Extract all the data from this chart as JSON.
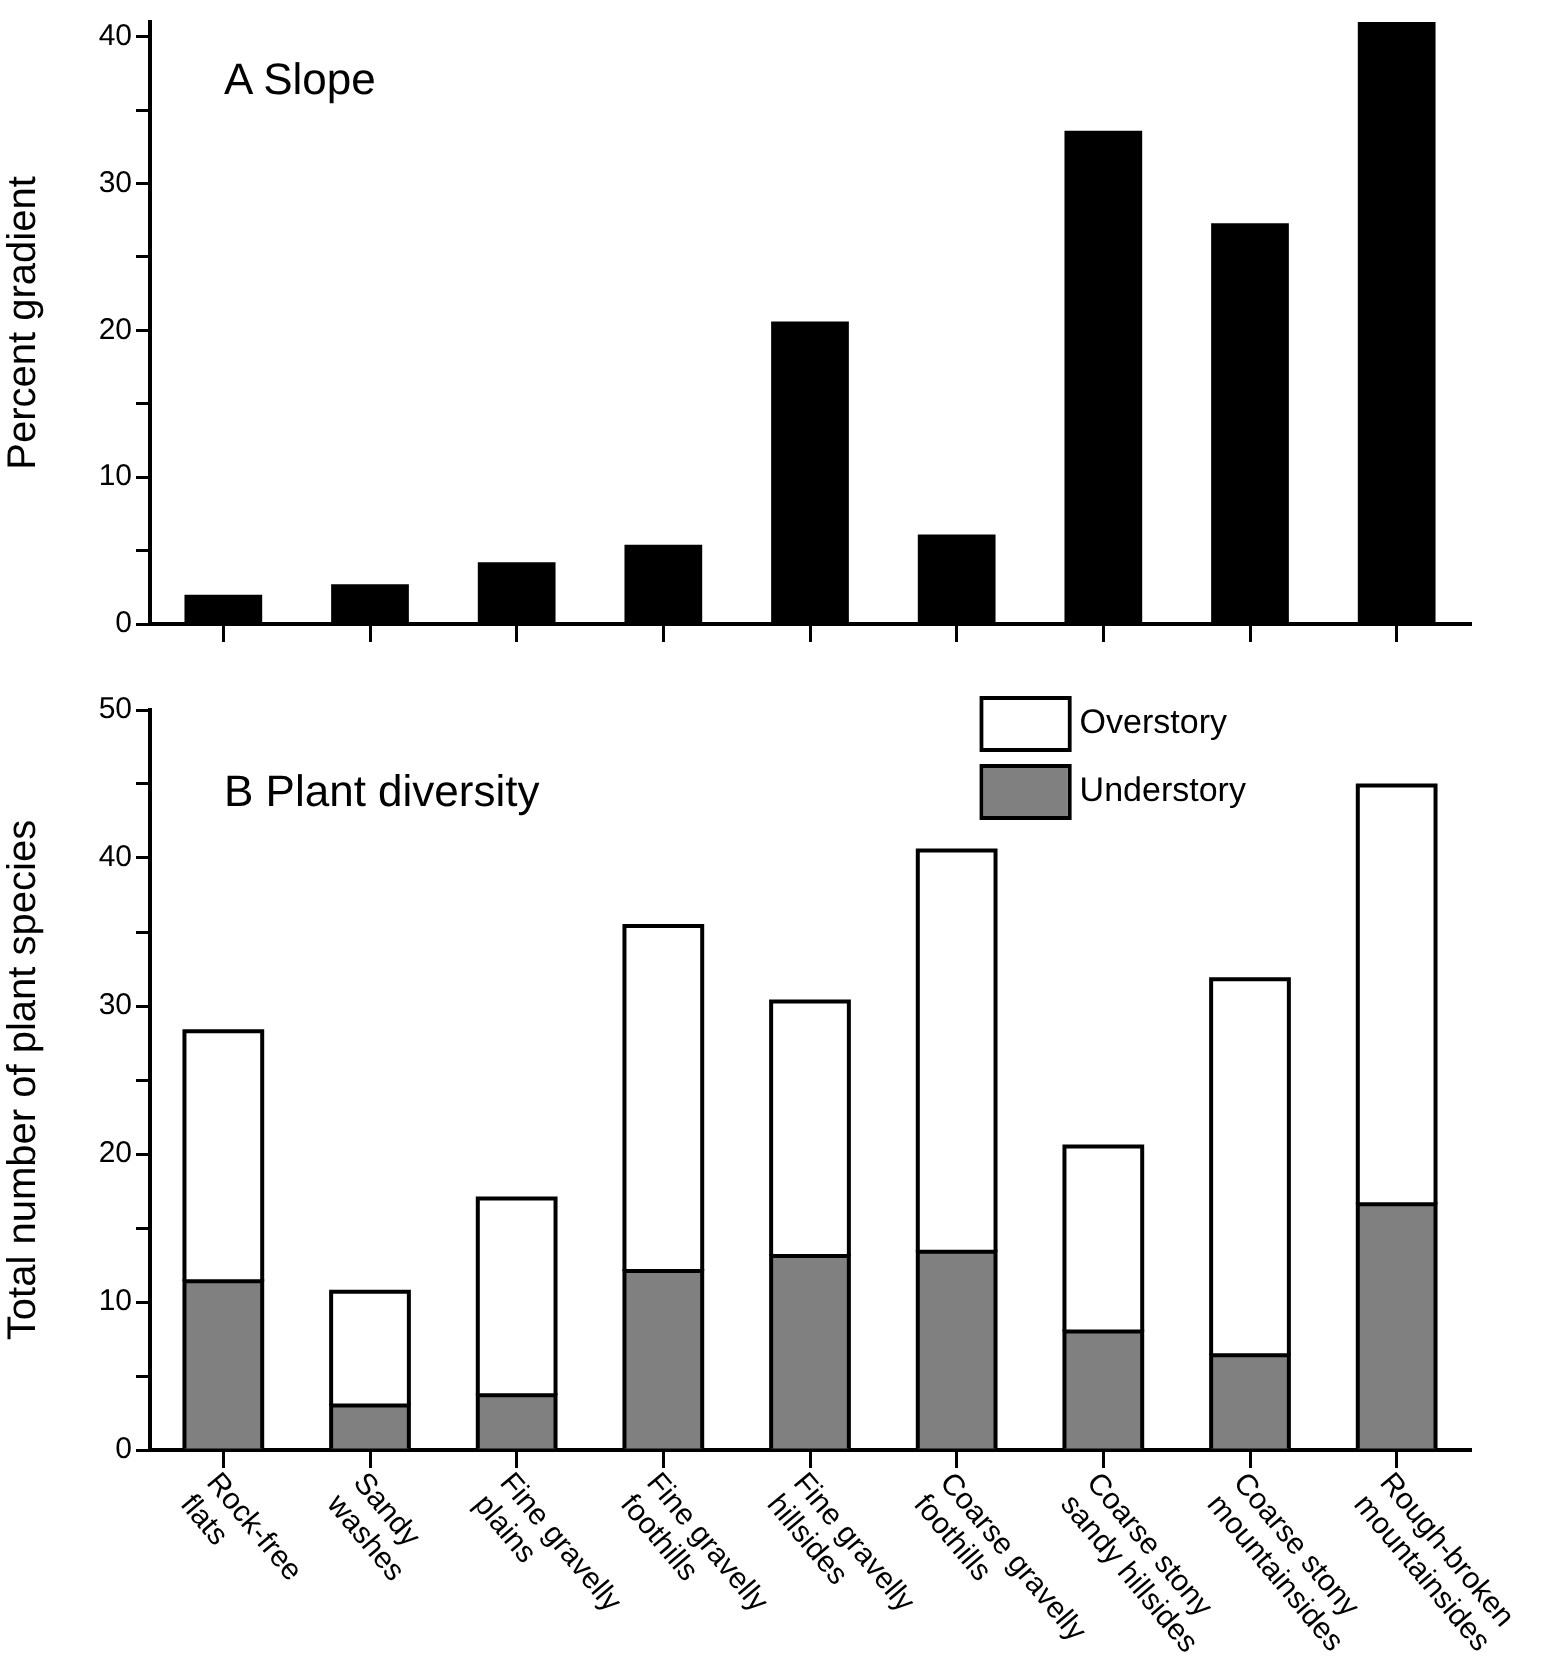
{
  "chart_data": [
    {
      "type": "bar",
      "title": "A Slope",
      "ylabel": "Percent gradient",
      "categories": [
        null,
        null,
        null,
        null,
        null,
        null,
        null,
        null,
        null
      ],
      "values": [
        2.0,
        2.7,
        4.2,
        5.4,
        20.6,
        6.1,
        33.6,
        27.3,
        41.0
      ],
      "color": "#000000",
      "ylim": [
        0,
        41
      ],
      "yticks": [
        0,
        {
          "value": 5,
          "label": null
        },
        10,
        {
          "value": 15,
          "label": null
        },
        20,
        {
          "value": 25,
          "label": null
        },
        30,
        {
          "value": 35,
          "label": null
        },
        40
      ],
      "grid": false,
      "legend": false,
      "tick_labels": "y"
    },
    {
      "type": "bar",
      "title": "B Plant diversity",
      "ylabel": "Total number of plant species",
      "categories": [
        "Rock-free flats",
        "Sandy washes",
        "Fine gravelly plains",
        "Fine gravelly foothills",
        "Fine gravelly hillsides",
        "Coarse gravelly foothills",
        "Coarse stony sandy hillsides",
        "Coarse stony mountainsides",
        "Rough-broken mountainsides"
      ],
      "series": [
        {
          "name": "Understory",
          "color": "#808080",
          "values": [
            11.4,
            3.0,
            3.7,
            12.1,
            13.1,
            13.4,
            8.0,
            6.4,
            16.6
          ]
        },
        {
          "name": "Overstory",
          "color": "#ffffff",
          "values": [
            16.9,
            7.7,
            13.3,
            23.3,
            17.2,
            27.1,
            12.5,
            25.4,
            28.3
          ]
        }
      ],
      "stacked": true,
      "ylim": [
        0,
        50
      ],
      "yticks": [
        0,
        {
          "value": 5,
          "label": null
        },
        10,
        {
          "value": 15,
          "label": null
        },
        20,
        {
          "value": 25,
          "label": null
        },
        30,
        {
          "value": 35,
          "label": null
        },
        40,
        {
          "value": 45,
          "label": null
        },
        50
      ],
      "grid": false,
      "legend": "top right"
    }
  ]
}
